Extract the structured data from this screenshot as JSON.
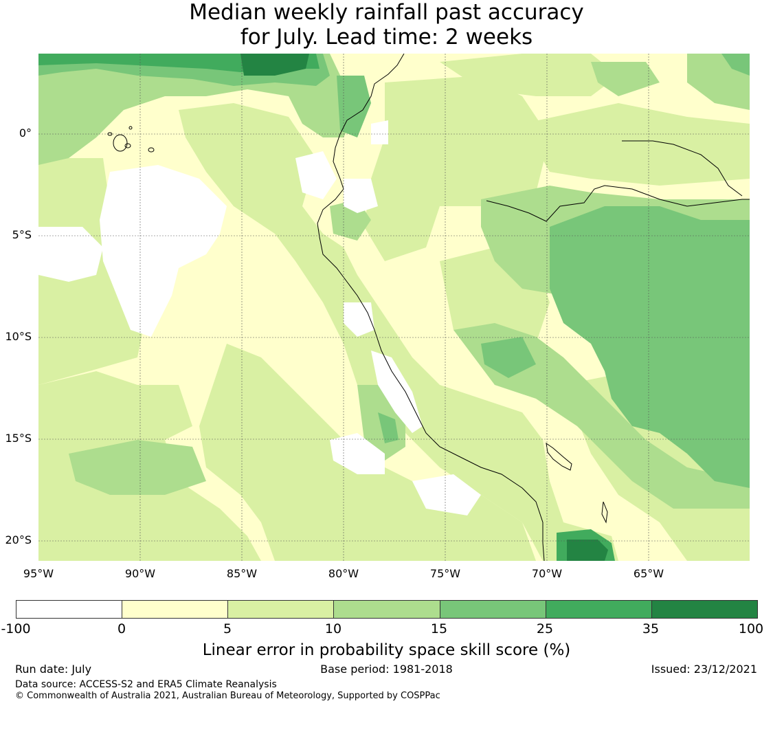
{
  "title_line1": "Median weekly rainfall past accuracy",
  "title_line2": "for July. Lead time: 2 weeks",
  "lat_labels": [
    "0°",
    "5°S",
    "10°S",
    "15°S",
    "20°S"
  ],
  "lat_values": [
    0,
    -5,
    -10,
    -15,
    -20
  ],
  "lon_labels": [
    "95°W",
    "90°W",
    "85°W",
    "80°W",
    "75°W",
    "70°W",
    "65°W"
  ],
  "lon_values": [
    -95,
    -90,
    -85,
    -80,
    -75,
    -70,
    -65
  ],
  "colorbar": {
    "label": "Linear error in probability space skill score (%)",
    "ticks": [
      "-100",
      "0",
      "5",
      "10",
      "15",
      "25",
      "35",
      "100"
    ],
    "colors": [
      "#ffffff",
      "#ffffcc",
      "#d9f0a3",
      "#addd8e",
      "#78c679",
      "#41ab5d",
      "#238443"
    ]
  },
  "footer": {
    "run_date": "Run date: July",
    "base_period": "Base period: 1981-2018",
    "issued": "Issued: 23/12/2021",
    "data_source": "Data source: ACCESS-S2 and ERA5 Climate Reanalysis",
    "copyright": "© Commonwealth of Australia 2021, Australian Bureau of Meteorology, Supported by COSPPac"
  }
}
